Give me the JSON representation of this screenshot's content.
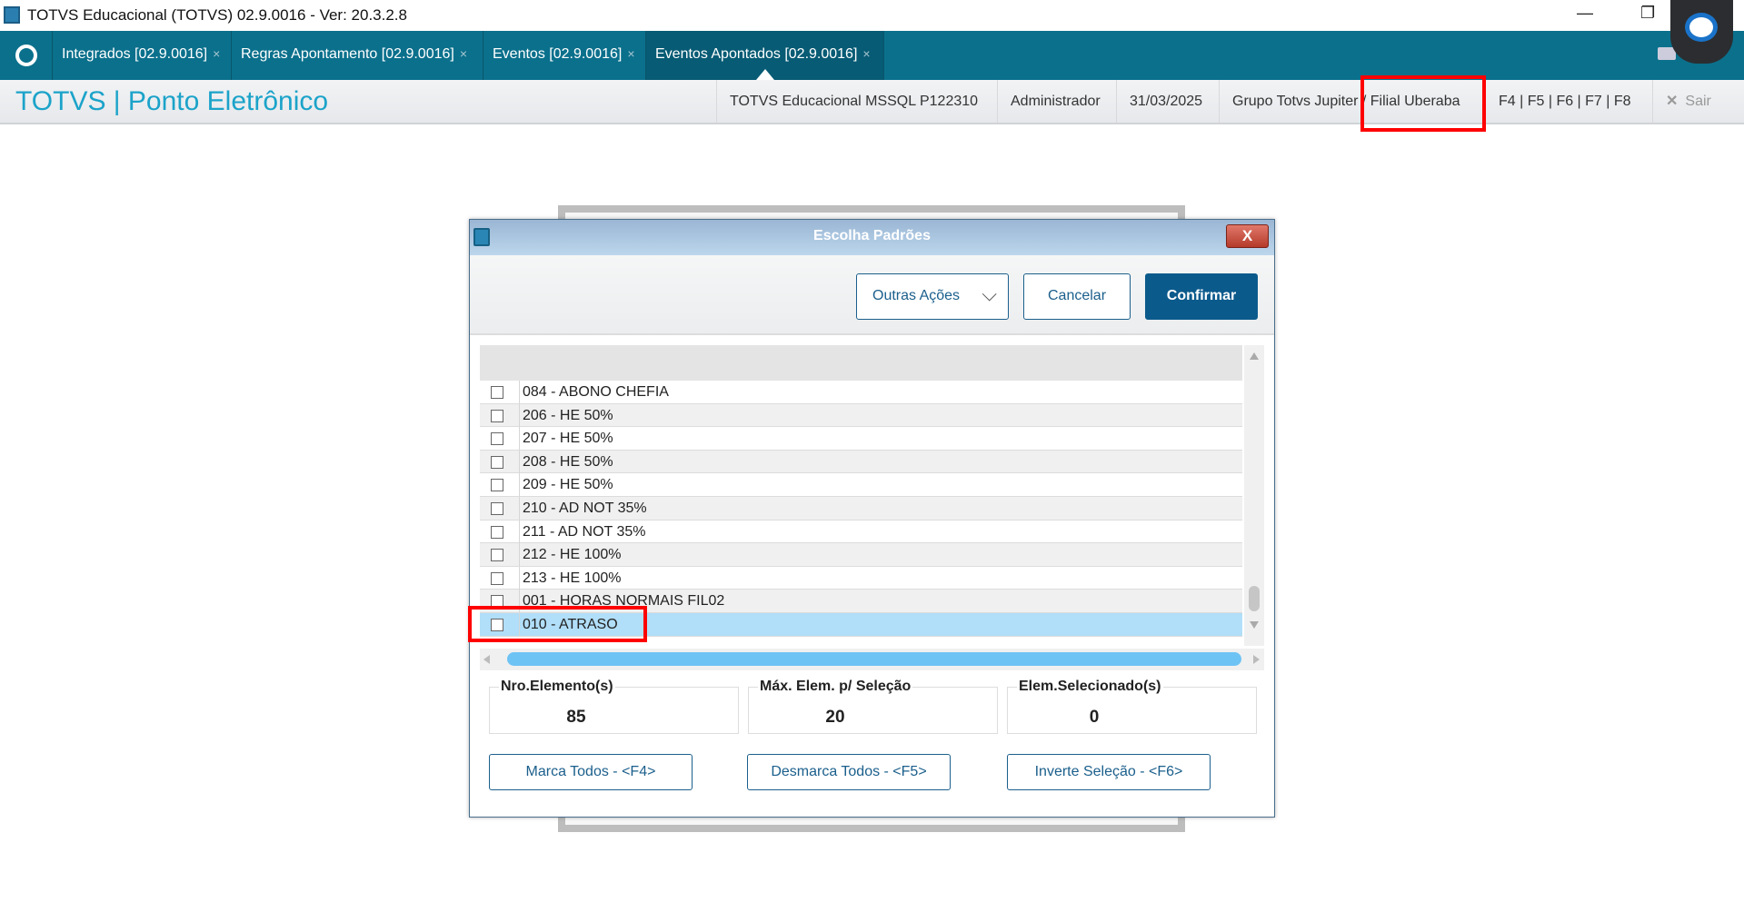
{
  "window": {
    "title": "TOTVS Educacional (TOTVS) 02.9.0016 - Ver: 20.3.2.8",
    "minimize": "—",
    "restore": "❐"
  },
  "tabs": [
    {
      "label": "Integrados [02.9.0016]",
      "close": "×"
    },
    {
      "label": "Regras Apontamento [02.9.0016]",
      "close": "×"
    },
    {
      "label": "Eventos [02.9.0016]",
      "close": "×"
    },
    {
      "label": "Eventos Apontados [02.9.0016]",
      "close": "×",
      "active": true
    }
  ],
  "header": {
    "title": "TOTVS | Ponto Eletrônico",
    "database": "TOTVS Educacional MSSQL P122310",
    "user": "Administrador",
    "date": "31/03/2025",
    "branch": "Grupo Totvs Jupiter / Filial Uberaba",
    "shortcuts": "F4 | F5 | F6 | F7 | F8",
    "exit": "Sair",
    "exit_icon": "✕"
  },
  "dialog": {
    "title": "Escolha Padrões",
    "close": "X",
    "toolbar": {
      "other_actions": "Outras Ações",
      "cancel": "Cancelar",
      "confirm": "Confirmar"
    },
    "rows": [
      {
        "label": "084 - ABONO CHEFIA",
        "checked": false
      },
      {
        "label": "206 - HE 50%",
        "checked": false
      },
      {
        "label": "207 - HE 50%",
        "checked": false
      },
      {
        "label": "208 - HE 50%",
        "checked": false
      },
      {
        "label": "209 - HE 50%",
        "checked": false
      },
      {
        "label": "210 - AD NOT 35%",
        "checked": false
      },
      {
        "label": "211 - AD NOT 35%",
        "checked": false
      },
      {
        "label": "212 - HE 100%",
        "checked": false
      },
      {
        "label": "213 - HE 100%",
        "checked": false
      },
      {
        "label": "001 - HORAS NORMAIS FIL02",
        "checked": false
      },
      {
        "label": "010 - ATRASO",
        "checked": false,
        "selected": true
      }
    ],
    "stats": {
      "count_label": "Nro.Elemento(s)",
      "count": "85",
      "max_label": "Máx. Elem. p/ Seleção",
      "max": "20",
      "selected_label": "Elem.Selecionado(s)",
      "selected": "0"
    },
    "actions": {
      "mark_all": "Marca Todos - <F4>",
      "unmark_all": "Desmarca Todos - <F5>",
      "invert": "Inverte Seleção - <F6>"
    }
  },
  "colors": {
    "tabbar": "#0b708c",
    "accent": "#1ba3c9",
    "confirm": "#0b5a8c",
    "selected_row": "#b1def8",
    "highlight": "#ff0000"
  }
}
